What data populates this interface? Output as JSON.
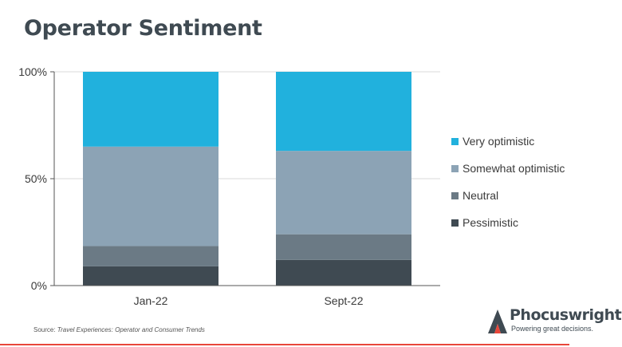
{
  "title": "Operator Sentiment",
  "source_prefix": "Source: ",
  "source_title": "Travel Experiences: Operator and Consumer Trends",
  "logo": {
    "name": "Phocuswright",
    "tagline": "Powering great decisions."
  },
  "colors": {
    "very_optimistic": "#21b1dd",
    "somewhat_optimistic": "#8ca3b5",
    "neutral": "#6b7a85",
    "pessimistic": "#3f4a52",
    "accent_line": "#e8463a"
  },
  "chart_data": {
    "type": "bar",
    "stacked": true,
    "categories": [
      "Jan-22",
      "Sept-22"
    ],
    "series": [
      {
        "name": "Pessimistic",
        "values": [
          9,
          12
        ]
      },
      {
        "name": "Neutral",
        "values": [
          9.5,
          12
        ]
      },
      {
        "name": "Somewhat optimistic",
        "values": [
          46.5,
          39
        ]
      },
      {
        "name": "Very optimistic",
        "values": [
          35,
          37
        ]
      }
    ],
    "y_ticks": [
      "0%",
      "50%",
      "100%"
    ],
    "ylim": [
      0,
      100
    ],
    "grid": true,
    "legend": "right"
  },
  "legend_items": [
    {
      "label": "Very optimistic",
      "color": "#21b1dd"
    },
    {
      "label": "Somewhat optimistic",
      "color": "#8ca3b5"
    },
    {
      "label": "Neutral",
      "color": "#6b7a85"
    },
    {
      "label": "Pessimistic",
      "color": "#3f4a52"
    }
  ]
}
